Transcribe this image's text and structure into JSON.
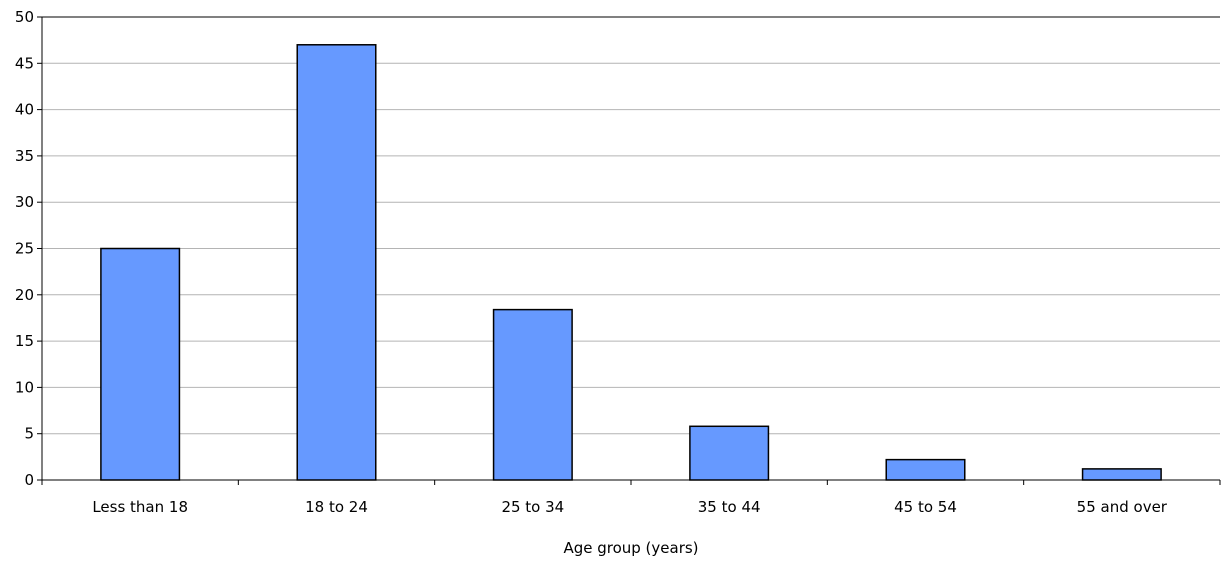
{
  "chart_data": {
    "type": "bar",
    "title": "",
    "xlabel": "Age group (years)",
    "ylabel": "",
    "categories": [
      "Less than 18",
      "18 to 24",
      "25 to 34",
      "35 to 44",
      "45 to 54",
      "55 and over"
    ],
    "values": [
      25.0,
      47.0,
      18.4,
      5.8,
      2.2,
      1.2
    ],
    "ylim": [
      0,
      50
    ],
    "yticks": [
      "0",
      "5",
      "10",
      "15",
      "20",
      "25",
      "30",
      "35",
      "40",
      "45",
      "50"
    ],
    "grid": true,
    "legend": "none",
    "colors": {
      "bar_fill": "#6699ff",
      "bar_stroke": "#000000",
      "grid": "#b4b4b4",
      "axis": "#000000"
    }
  }
}
